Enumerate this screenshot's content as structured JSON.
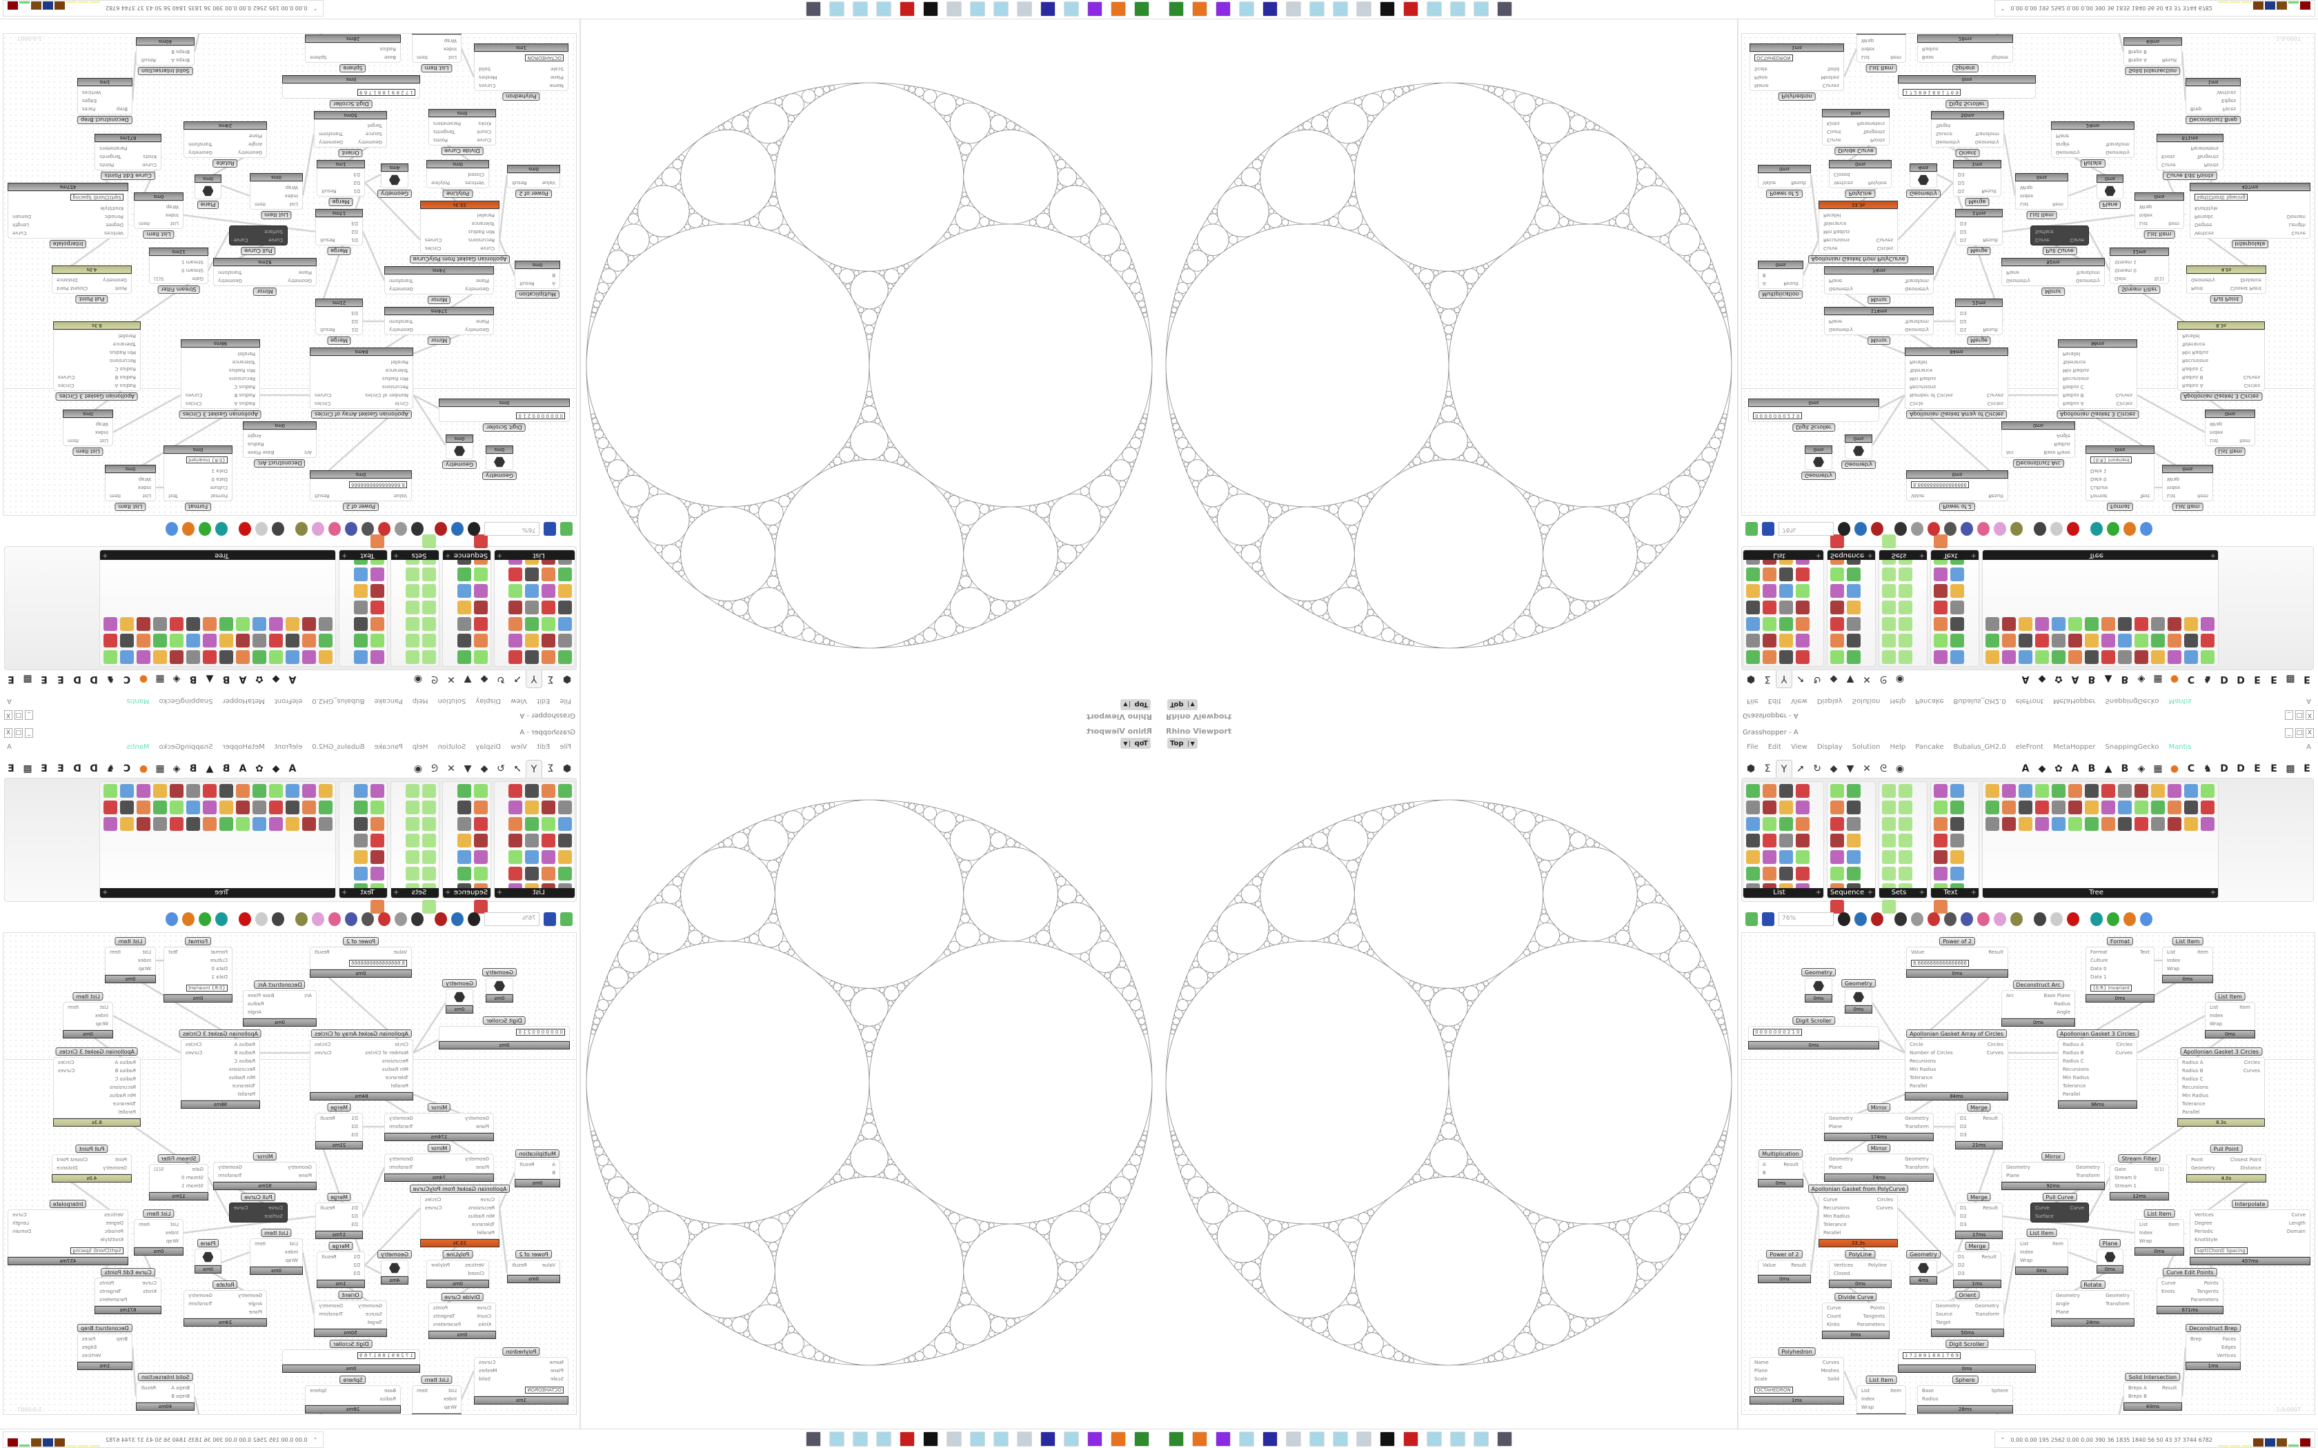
{
  "viewport": {
    "title": "Rhino Viewport",
    "view": "Top"
  },
  "grasshopper": {
    "title": "Grasshopper - A",
    "window_buttons": [
      "_",
      "□",
      "X"
    ],
    "menu": [
      "File",
      "Edit",
      "View",
      "Display",
      "Solution",
      "Help",
      "Pancake",
      "Bubalus_GH2.0",
      "eleFront",
      "MetaHopper",
      "SnappingGecko",
      "Mantis"
    ],
    "menu_right": "A",
    "accent_color": "#5ee0bd",
    "tabs_left": [
      {
        "icon": "params-hexagon-icon",
        "glyph": "⬢"
      },
      {
        "icon": "maths-sigma-icon",
        "glyph": "Σ"
      },
      {
        "icon": "sets-tree-icon",
        "glyph": "Y",
        "active": true
      },
      {
        "icon": "vector-arrow-icon",
        "glyph": "➚"
      },
      {
        "icon": "curve-icon",
        "glyph": "↻"
      },
      {
        "icon": "surface-icon",
        "glyph": "◆"
      },
      {
        "icon": "mesh-icon",
        "glyph": "▼"
      },
      {
        "icon": "intersect-icon",
        "glyph": "✕"
      },
      {
        "icon": "transform-icon",
        "glyph": "ᘓ"
      },
      {
        "icon": "display-eye-icon",
        "glyph": "◉"
      }
    ],
    "tabs_right": [
      "A",
      "◆",
      "✿",
      "A",
      "B",
      "▲",
      "B",
      "◈",
      "▦",
      "●",
      "C",
      "♞",
      "D",
      "D",
      "E",
      "E",
      "▩",
      "E"
    ],
    "ribbon_panels": [
      {
        "label": "List",
        "icon_count": 28
      },
      {
        "label": "Sequence",
        "icon_count": 15
      },
      {
        "label": "Sets",
        "icon_count": 15
      },
      {
        "label": "Text",
        "icon_count": 15
      },
      {
        "label": "Tree",
        "icon_count": 42
      }
    ],
    "zoom": "76%",
    "version": "1.0.0007"
  },
  "nodes": [
    {
      "title": "Geometry",
      "inputs": [],
      "outputs": [],
      "time": "0ms",
      "icon": "geometry-param-icon"
    },
    {
      "title": "Geometry",
      "inputs": [],
      "outputs": [],
      "time": "0ms",
      "icon": "geometry-param-icon"
    },
    {
      "title": "Digit Scroller",
      "inputs": [],
      "outputs": [],
      "time": "0ms",
      "value": "0 0 0 0 0 0 0 2 1 0"
    },
    {
      "title": "Power of 2",
      "inputs": [
        "Value"
      ],
      "outputs": [
        "Result"
      ],
      "time": "0ms",
      "value": "8.6666666666666666"
    },
    {
      "title": "Apollonian Gasket Array of Circles",
      "inputs": [
        "Circle",
        "Number of Circles",
        "Recursions",
        "Min Radius",
        "Tolerance",
        "Parallel"
      ],
      "outputs": [
        "Circles",
        "Curves"
      ],
      "time": "84ms"
    },
    {
      "title": "Mirror",
      "inputs": [
        "Geometry",
        "Plane"
      ],
      "outputs": [
        "Geometry",
        "Transform"
      ],
      "time": "174ms"
    },
    {
      "title": "Merge",
      "inputs": [
        "D1",
        "D2",
        "D3"
      ],
      "outputs": [
        "Result"
      ],
      "time": "21ms"
    },
    {
      "title": "Mirror",
      "inputs": [
        "Geometry",
        "Plane"
      ],
      "outputs": [
        "Geometry",
        "Transform"
      ],
      "time": "74ms"
    },
    {
      "title": "Merge",
      "inputs": [
        "D1",
        "D2",
        "D3"
      ],
      "outputs": [
        "Result"
      ],
      "time": "17ms"
    },
    {
      "title": "Deconstruct Arc",
      "inputs": [
        "Arc"
      ],
      "outputs": [
        "Base Plane",
        "Radius",
        "Angle"
      ],
      "time": "0ms"
    },
    {
      "title": "Format",
      "inputs": [
        "Format",
        "Culture",
        "Data 0",
        "Data 1"
      ],
      "outputs": [
        "Text"
      ],
      "time": "0ms",
      "value": "{0:R}  Invariant"
    },
    {
      "title": "List Item",
      "inputs": [
        "List",
        "Index",
        "Wrap"
      ],
      "outputs": [
        "Item"
      ],
      "time": "0ms"
    },
    {
      "title": "Apollonian Gasket 3 Circles",
      "inputs": [
        "Radius A",
        "Radius B",
        "Radius C",
        "Recursions",
        "Min Radius",
        "Tolerance",
        "Parallel"
      ],
      "outputs": [
        "Circles",
        "Curves"
      ],
      "time": "96ms"
    },
    {
      "title": "List Item",
      "inputs": [
        "List",
        "Index",
        "Wrap"
      ],
      "outputs": [
        "Item"
      ],
      "time": "0ms"
    },
    {
      "title": "Apollonian Gasket 3 Circles",
      "inputs": [
        "Radius A",
        "Radius B",
        "Radius C",
        "Recursions",
        "Min Radius",
        "Tolerance",
        "Parallel"
      ],
      "outputs": [
        "Circles",
        "Curves"
      ],
      "time": "8.3s",
      "status": "slow"
    },
    {
      "title": "Mirror",
      "inputs": [
        "Geometry",
        "Plane"
      ],
      "outputs": [
        "Geometry",
        "Transform"
      ],
      "time": "92ms"
    },
    {
      "title": "Multiplication",
      "inputs": [
        "A",
        "B"
      ],
      "outputs": [
        "Result"
      ],
      "time": "0ms"
    },
    {
      "title": "Power of 2",
      "inputs": [
        "Value"
      ],
      "outputs": [
        "Result"
      ],
      "time": "0ms"
    },
    {
      "title": "Apollonian Gasket from PolyCurve",
      "inputs": [
        "Curve",
        "Recursions",
        "Min Radius",
        "Tolerance",
        "Parallel"
      ],
      "outputs": [
        "Circles",
        "Curves"
      ],
      "time": "33.3s",
      "status": "very-slow"
    },
    {
      "title": "Geometry",
      "inputs": [],
      "outputs": [],
      "time": "4ms",
      "icon": "geometry-param-icon"
    },
    {
      "title": "Merge",
      "inputs": [
        "D1",
        "D2",
        "D3"
      ],
      "outputs": [
        "Result"
      ],
      "time": "1ms"
    },
    {
      "title": "Orient",
      "inputs": [
        "Geometry",
        "Source",
        "Target"
      ],
      "outputs": [
        "Geometry",
        "Transform"
      ],
      "time": "50ms"
    },
    {
      "title": "PolyLine",
      "inputs": [
        "Vertices",
        "Closed"
      ],
      "outputs": [
        "Polyline"
      ],
      "time": "0ms"
    },
    {
      "title": "Digit Scroller",
      "inputs": [],
      "outputs": [],
      "time": "0ms",
      "value": "1 7 2 8 9 1 8 8 1 7 6 9"
    },
    {
      "title": "Divide Curve",
      "inputs": [
        "Curve",
        "Count",
        "Kinks"
      ],
      "outputs": [
        "Points",
        "Tangents",
        "Parameters"
      ],
      "time": "0ms"
    },
    {
      "title": "Sphere",
      "inputs": [
        "Base",
        "Radius"
      ],
      "outputs": [
        "Sphere"
      ],
      "time": "28ms"
    },
    {
      "title": "Polyhedron",
      "inputs": [
        "Name",
        "Plane",
        "Scale"
      ],
      "outputs": [
        "Curves",
        "Meshes",
        "Solid"
      ],
      "time": "1ms",
      "value": "OCTAHEDRON"
    },
    {
      "title": "List Item",
      "inputs": [
        "List",
        "Index",
        "Wrap"
      ],
      "outputs": [
        "Item"
      ],
      "time": "0ms"
    },
    {
      "title": "InfoGlasses",
      "inputs": [],
      "outputs": [],
      "time": "454ms"
    },
    {
      "title": "Pull Curve",
      "inputs": [
        "Curve",
        "Surface"
      ],
      "outputs": [
        "Curve"
      ],
      "status": "disabled"
    },
    {
      "title": "Stream Filter",
      "inputs": [
        "Gate",
        "Stream 0",
        "Stream 1"
      ],
      "outputs": [
        "S(1)"
      ],
      "time": "12ms"
    },
    {
      "title": "Pull Point",
      "inputs": [
        "Point",
        "Geometry"
      ],
      "outputs": [
        "Closest Point",
        "Distance"
      ],
      "time": "4.0s",
      "status": "slow"
    },
    {
      "title": "Interpolate",
      "inputs": [
        "Vertices",
        "Degree",
        "Periodic",
        "KnotStyle"
      ],
      "outputs": [
        "Curve",
        "Length",
        "Domain"
      ],
      "time": "457ms",
      "value": "Sqrt(Chord) Spacing"
    },
    {
      "title": "List Item",
      "inputs": [
        "List",
        "Index",
        "Wrap"
      ],
      "outputs": [
        "Item"
      ],
      "time": "0ms"
    },
    {
      "title": "List Item",
      "inputs": [
        "List",
        "Index",
        "Wrap"
      ],
      "outputs": [
        "Item"
      ],
      "time": "0ms"
    },
    {
      "title": "Plane",
      "inputs": [],
      "outputs": [],
      "time": "0ms",
      "icon": "plane-param-icon"
    },
    {
      "title": "Rotate",
      "inputs": [
        "Geometry",
        "Angle",
        "Plane"
      ],
      "outputs": [
        "Geometry",
        "Transform"
      ],
      "time": "24ms"
    },
    {
      "title": "Curve Edit Points",
      "inputs": [
        "Curve",
        "Knots"
      ],
      "outputs": [
        "Points",
        "Tangents",
        "Parameters"
      ],
      "time": "671ms"
    },
    {
      "title": "Box 2Pt",
      "inputs": [
        "Point A",
        "Point B",
        "Plane"
      ],
      "outputs": [
        "Box"
      ],
      "time": "0ms"
    },
    {
      "title": "Solid Intersection",
      "inputs": [
        "Breps A",
        "Breps B"
      ],
      "outputs": [
        "Result"
      ],
      "time": "40ms"
    },
    {
      "title": "Deconstruct Brep",
      "inputs": [
        "Brep"
      ],
      "outputs": [
        "Faces",
        "Edges",
        "Vertices"
      ],
      "time": "1ms"
    }
  ],
  "taskbar": {
    "app_icons": [
      "rhino-icon",
      "firefox-icon",
      "purple-app-icon",
      "notepad-icon",
      "floppy-disk-icon",
      "document-icon",
      "notepad-icon",
      "notepad-icon",
      "document-icon",
      "inkscape-icon",
      "red-app-icon",
      "notepad-icon",
      "notepad-icon",
      "notepad-icon",
      "robot-icon"
    ],
    "tray_stats": "0.00 0.00 195 2562 0.00 0.00 390 36 1835 1840 56 50 43 37 3744 6782",
    "tray_bar_colors": [
      "#f4f08a",
      "#f4f08a",
      "#f4f08a",
      "#7a3d0c",
      "#1d3a86",
      "#7a4a12",
      "#6dd36d",
      "#8b0000"
    ]
  }
}
